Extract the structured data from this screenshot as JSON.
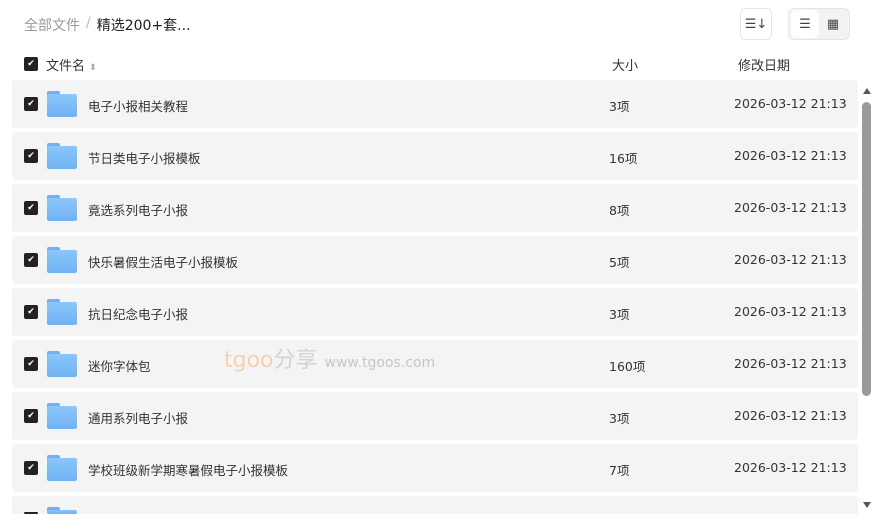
{
  "breadcrumb": {
    "root": "全部文件",
    "separator": "/",
    "current": "精选200+套..."
  },
  "toolbar": {
    "sort_icon": "sort-lines-icon",
    "list_icon": "list-view-icon",
    "grid_icon": "grid-view-icon",
    "active_view": "list"
  },
  "header": {
    "name": "文件名",
    "size": "大小",
    "date": "修改日期",
    "all_checked": true
  },
  "rows": [
    {
      "name": "电子小报相关教程",
      "size": "3项",
      "date": "2026-03-12 21:13",
      "checked": true
    },
    {
      "name": "节日类电子小报模板",
      "size": "16项",
      "date": "2026-03-12 21:13",
      "checked": true
    },
    {
      "name": "竟选系列电子小报",
      "size": "8项",
      "date": "2026-03-12 21:13",
      "checked": true
    },
    {
      "name": "快乐暑假生活电子小报模板",
      "size": "5项",
      "date": "2026-03-12 21:13",
      "checked": true
    },
    {
      "name": "抗日纪念电子小报",
      "size": "3项",
      "date": "2026-03-12 21:13",
      "checked": true
    },
    {
      "name": "迷你字体包",
      "size": "160项",
      "date": "2026-03-12 21:13",
      "checked": true
    },
    {
      "name": "通用系列电子小报",
      "size": "3项",
      "date": "2026-03-12 21:13",
      "checked": true
    },
    {
      "name": "学校班级新学期寒暑假电子小报模板",
      "size": "7项",
      "date": "2026-03-12 21:13",
      "checked": true
    },
    {
      "name": "",
      "size": "",
      "date": "",
      "checked": true
    }
  ],
  "watermark": {
    "brand": "tgoo",
    "cn": "分享",
    "url": "www.tgoos.com"
  },
  "colors": {
    "folder": "#7dbcf6",
    "row_bg": "#f4f4f4",
    "checkbox": "#222222"
  }
}
